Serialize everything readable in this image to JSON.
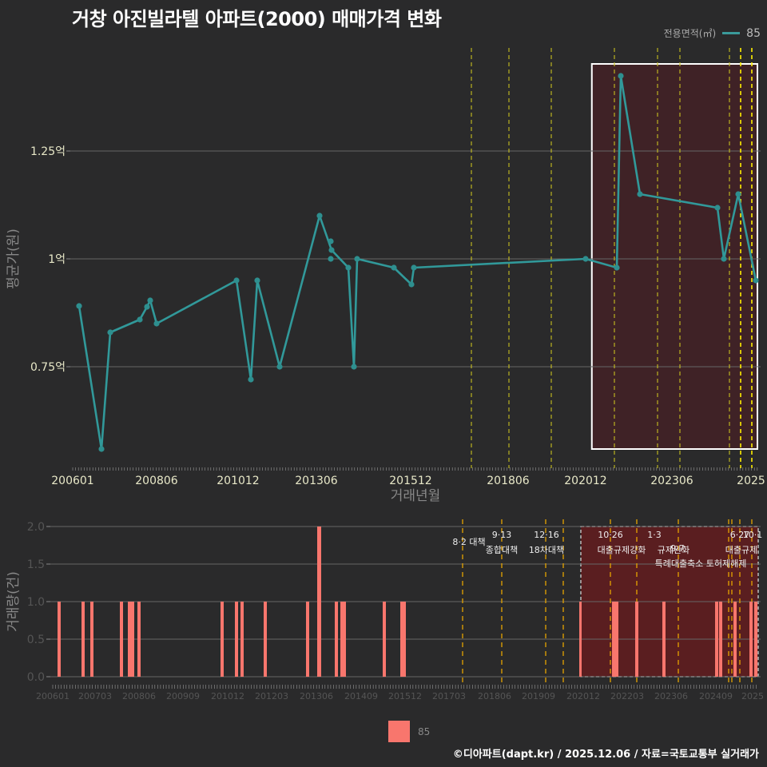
{
  "title": "거창 아진빌라텔 아파트(2000) 매매가격 변화",
  "legend_top": {
    "label": "전용면적(㎡)",
    "series": "85",
    "color": "#3a9a9a"
  },
  "legend_bottom": {
    "series": "85",
    "color": "#f8766d"
  },
  "caption": "©디아파트(dapt.kr) / 2025.12.06 / 자료=국토교통부 실거래가",
  "chart_data": [
    {
      "type": "line",
      "title": "거창 아진빌라텔 아파트(2000) 매매가격 변화",
      "xlabel": "거래년월",
      "ylabel": "평균가(원)",
      "y_ticks": [
        "0.75억",
        "1억",
        "1.25억"
      ],
      "x_ticks": [
        "200601",
        "200806",
        "201012",
        "201306",
        "201512",
        "201806",
        "202012",
        "202306",
        "2025"
      ],
      "ylim": [
        0.53,
        1.48
      ],
      "series": [
        {
          "name": "85",
          "x": [
            "200602",
            "200705",
            "200709",
            "200802",
            "200804",
            "200805",
            "200808",
            "201008",
            "201103",
            "201105",
            "201203",
            "201304",
            "201307",
            "201307",
            "201310",
            "201311",
            "201312",
            "201510",
            "201604",
            "201606",
            "202012",
            "202111",
            "202201",
            "202208",
            "202407",
            "202409",
            "202412",
            "202506"
          ],
          "values": [
            0.89,
            0.56,
            0.83,
            0.86,
            0.89,
            0.905,
            0.85,
            0.95,
            0.72,
            0.95,
            0.75,
            1.1,
            1.04,
            1.0,
            0.98,
            0.75,
            1.0,
            0.98,
            0.94,
            0.98,
            1.0,
            0.98,
            1.42,
            1.15,
            1.12,
            1.0,
            1.15,
            0.95
          ]
        }
      ],
      "highlight_region": {
        "from": "202012",
        "to": "2025"
      },
      "policy_lines": [
        "201708",
        "201809",
        "201912",
        "202111",
        "202301",
        "202309",
        "202406",
        "202410",
        "202501"
      ]
    },
    {
      "type": "bar",
      "xlabel": "",
      "ylabel": "거래량(건)",
      "y_ticks": [
        "0.0",
        "0.5",
        "1.0",
        "1.5",
        "2.0"
      ],
      "x_ticks": [
        "200601",
        "200703",
        "200806",
        "200909",
        "201012",
        "201203",
        "201306",
        "201409",
        "201512",
        "201703",
        "201806",
        "201909",
        "202012",
        "202203",
        "202306",
        "202409",
        "2025"
      ],
      "ylim": [
        0,
        2
      ],
      "series": [
        {
          "name": "85",
          "x": [
            "200602",
            "200705",
            "200709",
            "200802",
            "200804",
            "200805",
            "200808",
            "201008",
            "201103",
            "201105",
            "201203",
            "201304",
            "201307",
            "201310",
            "201311",
            "201312",
            "201510",
            "201604",
            "201605",
            "202012",
            "202111",
            "202112",
            "202201",
            "202208",
            "202407",
            "202409",
            "202412",
            "202506",
            "202507"
          ],
          "values": [
            1,
            1,
            1,
            1,
            1,
            1,
            1,
            1,
            1,
            1,
            1,
            1,
            2,
            1,
            1,
            1,
            1,
            1,
            1,
            1,
            1,
            1,
            1,
            1,
            1,
            1,
            1,
            1,
            1
          ]
        }
      ],
      "events": [
        {
          "date": "8·2",
          "label": "대책"
        },
        {
          "date": "9·13",
          "label": "종합대책"
        },
        {
          "date": "12·16",
          "label": "18차대책"
        },
        {
          "date": "10·26",
          "label": "대출규제강화"
        },
        {
          "date": "1·3",
          "label": "규제완화"
        },
        {
          "date": "9·7",
          "label": "특례대출축소"
        },
        {
          "date": "",
          "label": "토허제해제"
        },
        {
          "date": "6·27",
          "label": "대출규제"
        },
        {
          "date": "10·1",
          "label": "대출규제"
        }
      ]
    }
  ],
  "axes": {
    "main_xlabel": "거래년월",
    "main_ylabel": "평균가(원)",
    "bar_ylabel": "거래량(건)"
  }
}
